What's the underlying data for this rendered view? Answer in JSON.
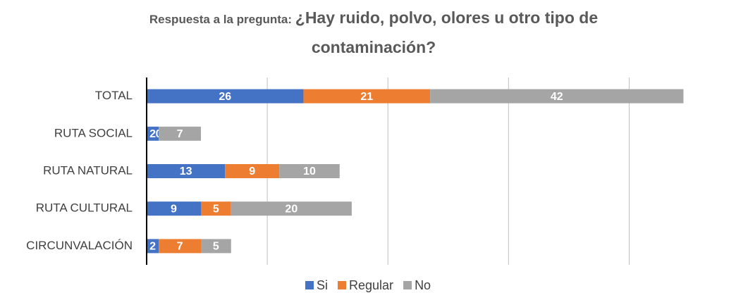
{
  "chart_data": {
    "type": "bar",
    "orientation": "horizontal",
    "stacked": true,
    "title_prefix": "Respuesta a la pregunta: ",
    "title": "¿Hay ruido, polvo, olores u otro tipo de contaminación?",
    "categories": [
      "TOTAL",
      "RUTA SOCIAL",
      "RUTA NATURAL",
      "RUTA CULTURAL",
      "CIRCUNVALACIÓN"
    ],
    "series": [
      {
        "name": "Si",
        "color": "#4472c4",
        "values": [
          26,
          2,
          13,
          9,
          2
        ]
      },
      {
        "name": "Regular",
        "color": "#ed7d31",
        "values": [
          21,
          0,
          9,
          5,
          7
        ]
      },
      {
        "name": "No",
        "color": "#a5a5a5",
        "values": [
          42,
          7,
          10,
          20,
          5
        ]
      }
    ],
    "xlim": [
      0,
      90
    ],
    "xticks": [
      0,
      20,
      40,
      60,
      80
    ],
    "grid": true,
    "legend": "bottom"
  }
}
